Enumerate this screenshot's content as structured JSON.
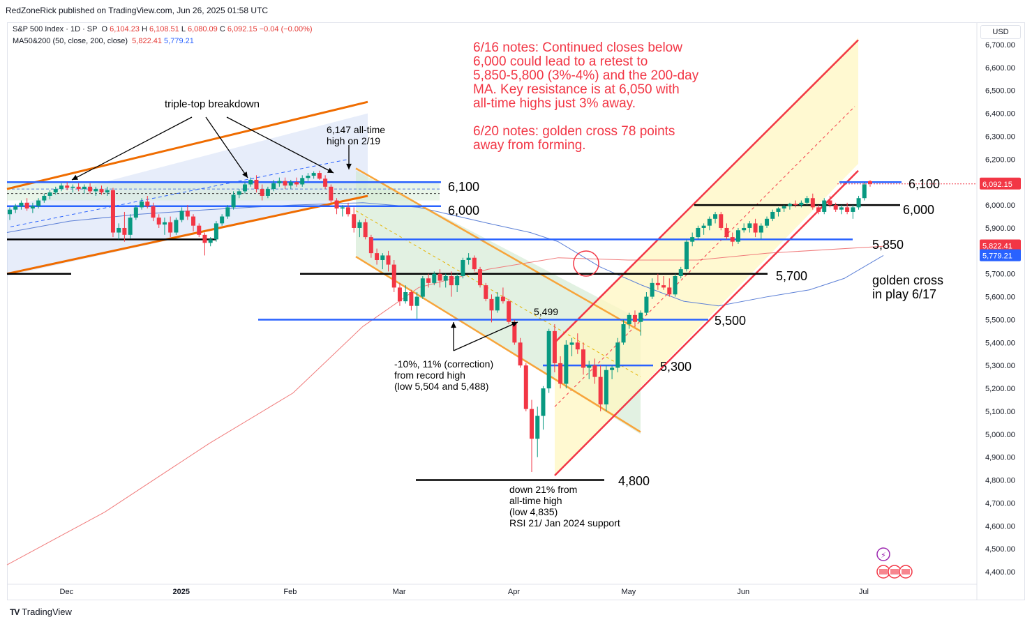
{
  "header": {
    "publisher": "RedZoneRick published on TradingView.com, Jun 26, 2025 01:58 UTC"
  },
  "legend": {
    "symbol": "S&P 500 Index · 1D · SP",
    "o_label": "O",
    "o": "6,104.23",
    "h_label": "H",
    "h": "6,108.51",
    "l_label": "L",
    "l": "6,080.09",
    "c_label": "C",
    "c": "6,092.15",
    "change": "−0.04 (−0.00%)",
    "ma_label": "MA50&200 (50, close, 200, close)",
    "ma50": "5,822.41",
    "ma200": "5,779.21"
  },
  "currency_button": "USD",
  "footer": {
    "brand": "TradingView",
    "logo": "TV"
  },
  "colors": {
    "up": "#089981",
    "down": "#f23645",
    "ma50": "#5b7fd6",
    "ma200": "#f07a7a",
    "blue_line": "#2962ff",
    "orange": "#ef6c00",
    "red_channel": "#f23645",
    "black": "#000000"
  },
  "chart_data": {
    "type": "candlestick",
    "ylim": [
      4320,
      6780
    ],
    "y_ticks": [
      "6,700.00",
      "6,600.00",
      "6,500.00",
      "6,400.00",
      "6,300.00",
      "6,200.00",
      "6,100.00",
      "6,000.00",
      "5,900.00",
      "5,800.00",
      "5,700.00",
      "5,600.00",
      "5,500.00",
      "5,400.00",
      "5,300.00",
      "5,200.00",
      "5,100.00",
      "5,000.00",
      "4,900.00",
      "4,800.00",
      "4,700.00",
      "4,600.00",
      "4,500.00",
      "4,400.00"
    ],
    "x_labels": [
      {
        "label": "Dec",
        "idx": 6
      },
      {
        "label": "2025",
        "idx": 26
      },
      {
        "label": "Feb",
        "idx": 45
      },
      {
        "label": "Mar",
        "idx": 64
      },
      {
        "label": "Apr",
        "idx": 84
      },
      {
        "label": "May",
        "idx": 104
      },
      {
        "label": "Jun",
        "idx": 124
      },
      {
        "label": "Jul",
        "idx": 145
      }
    ],
    "x_bold": [
      "2025"
    ],
    "price_badges": [
      {
        "label": "6,092.15",
        "value": 6092.15,
        "color": "#f23645"
      },
      {
        "label": "5,822.41",
        "value": 5822.41,
        "color": "#f23645"
      },
      {
        "label": "5,779.21",
        "value": 5779.21,
        "color": "#2962ff"
      }
    ],
    "candles": [
      [
        5960,
        5990,
        5935,
        5980
      ],
      [
        5980,
        6005,
        5965,
        5995
      ],
      [
        5995,
        6020,
        5980,
        6010
      ],
      [
        6010,
        6030,
        5975,
        5985
      ],
      [
        5985,
        6010,
        5965,
        5995
      ],
      [
        5995,
        6030,
        5985,
        6020
      ],
      [
        6020,
        6050,
        6010,
        6040
      ],
      [
        6040,
        6065,
        6025,
        6055
      ],
      [
        6055,
        6080,
        6045,
        6070
      ],
      [
        6070,
        6095,
        6060,
        6085
      ],
      [
        6085,
        6100,
        6065,
        6075
      ],
      [
        6075,
        6090,
        6055,
        6080
      ],
      [
        6080,
        6095,
        6060,
        6070
      ],
      [
        6070,
        6090,
        6050,
        6080
      ],
      [
        6080,
        6095,
        6050,
        6060
      ],
      [
        6060,
        6080,
        6040,
        6070
      ],
      [
        6070,
        6085,
        6045,
        6055
      ],
      [
        6055,
        6080,
        6040,
        6065
      ],
      [
        6065,
        6075,
        5860,
        5880
      ],
      [
        5880,
        5920,
        5850,
        5900
      ],
      [
        5900,
        5970,
        5840,
        5870
      ],
      [
        5870,
        5960,
        5855,
        5945
      ],
      [
        5945,
        6000,
        5935,
        5990
      ],
      [
        5990,
        6030,
        5980,
        6015
      ],
      [
        6015,
        6040,
        5985,
        5995
      ],
      [
        5995,
        6010,
        5930,
        5945
      ],
      [
        5945,
        5960,
        5900,
        5915
      ],
      [
        5915,
        5945,
        5870,
        5925
      ],
      [
        5925,
        5950,
        5860,
        5880
      ],
      [
        5880,
        5945,
        5870,
        5935
      ],
      [
        5935,
        5990,
        5925,
        5975
      ],
      [
        5975,
        6000,
        5935,
        5950
      ],
      [
        5950,
        5960,
        5885,
        5910
      ],
      [
        5910,
        5920,
        5860,
        5870
      ],
      [
        5870,
        5880,
        5780,
        5835
      ],
      [
        5835,
        5860,
        5820,
        5850
      ],
      [
        5850,
        5930,
        5840,
        5920
      ],
      [
        5920,
        5960,
        5910,
        5950
      ],
      [
        5950,
        6000,
        5940,
        5990
      ],
      [
        5990,
        6060,
        5980,
        6045
      ],
      [
        6045,
        6070,
        6030,
        6060
      ],
      [
        6060,
        6100,
        6050,
        6090
      ],
      [
        6090,
        6120,
        6080,
        6110
      ],
      [
        6110,
        6130,
        6055,
        6070
      ],
      [
        6070,
        6090,
        6020,
        6040
      ],
      [
        6040,
        6080,
        6030,
        6070
      ],
      [
        6070,
        6110,
        6060,
        6095
      ],
      [
        6095,
        6120,
        6080,
        6105
      ],
      [
        6105,
        6120,
        6070,
        6085
      ],
      [
        6085,
        6110,
        6070,
        6100
      ],
      [
        6100,
        6120,
        6080,
        6090
      ],
      [
        6090,
        6130,
        6080,
        6118
      ],
      [
        6118,
        6140,
        6105,
        6128
      ],
      [
        6128,
        6147,
        6115,
        6140
      ],
      [
        6140,
        6150,
        6110,
        6115
      ],
      [
        6115,
        6130,
        6070,
        6080
      ],
      [
        6080,
        6090,
        6010,
        6020
      ],
      [
        6020,
        6030,
        5960,
        5985
      ],
      [
        5985,
        6000,
        5950,
        5990
      ],
      [
        5990,
        6010,
        5950,
        5960
      ],
      [
        5960,
        5990,
        5880,
        5900
      ],
      [
        5900,
        5935,
        5860,
        5925
      ],
      [
        5925,
        5940,
        5850,
        5860
      ],
      [
        5860,
        5870,
        5770,
        5790
      ],
      [
        5790,
        5810,
        5740,
        5760
      ],
      [
        5760,
        5790,
        5720,
        5780
      ],
      [
        5780,
        5800,
        5710,
        5740
      ],
      [
        5740,
        5760,
        5620,
        5640
      ],
      [
        5640,
        5660,
        5560,
        5580
      ],
      [
        5580,
        5650,
        5570,
        5620
      ],
      [
        5620,
        5630,
        5540,
        5560
      ],
      [
        5560,
        5620,
        5504,
        5600
      ],
      [
        5600,
        5690,
        5590,
        5680
      ],
      [
        5680,
        5700,
        5640,
        5660
      ],
      [
        5660,
        5710,
        5650,
        5700
      ],
      [
        5700,
        5720,
        5640,
        5670
      ],
      [
        5670,
        5700,
        5640,
        5690
      ],
      [
        5690,
        5710,
        5600,
        5650
      ],
      [
        5650,
        5700,
        5620,
        5690
      ],
      [
        5690,
        5770,
        5680,
        5760
      ],
      [
        5760,
        5790,
        5740,
        5770
      ],
      [
        5770,
        5780,
        5710,
        5720
      ],
      [
        5720,
        5730,
        5640,
        5650
      ],
      [
        5650,
        5660,
        5580,
        5590
      ],
      [
        5590,
        5610,
        5488,
        5540
      ],
      [
        5540,
        5620,
        5530,
        5600
      ],
      [
        5600,
        5640,
        5570,
        5580
      ],
      [
        5580,
        5590,
        5480,
        5490
      ],
      [
        5490,
        5500,
        5390,
        5400
      ],
      [
        5400,
        5420,
        5290,
        5300
      ],
      [
        5300,
        5310,
        5100,
        5110
      ],
      [
        5110,
        5150,
        4835,
        4980
      ],
      [
        4980,
        5120,
        4900,
        5080
      ],
      [
        5080,
        5210,
        5020,
        5200
      ],
      [
        5200,
        5460,
        5180,
        5450
      ],
      [
        5450,
        5480,
        5270,
        5310
      ],
      [
        5310,
        5340,
        5200,
        5220
      ],
      [
        5220,
        5410,
        5200,
        5390
      ],
      [
        5390,
        5420,
        5340,
        5400
      ],
      [
        5400,
        5440,
        5350,
        5370
      ],
      [
        5370,
        5400,
        5260,
        5290
      ],
      [
        5290,
        5320,
        5240,
        5300
      ],
      [
        5300,
        5330,
        5220,
        5250
      ],
      [
        5250,
        5300,
        5100,
        5130
      ],
      [
        5130,
        5300,
        5100,
        5280
      ],
      [
        5280,
        5300,
        5240,
        5290
      ],
      [
        5290,
        5420,
        5270,
        5400
      ],
      [
        5400,
        5500,
        5390,
        5480
      ],
      [
        5480,
        5530,
        5460,
        5520
      ],
      [
        5520,
        5540,
        5470,
        5490
      ],
      [
        5490,
        5540,
        5430,
        5530
      ],
      [
        5530,
        5620,
        5520,
        5600
      ],
      [
        5600,
        5680,
        5590,
        5660
      ],
      [
        5660,
        5700,
        5630,
        5650
      ],
      [
        5650,
        5690,
        5630,
        5640
      ],
      [
        5640,
        5680,
        5600,
        5610
      ],
      [
        5610,
        5700,
        5600,
        5690
      ],
      [
        5690,
        5730,
        5680,
        5720
      ],
      [
        5720,
        5850,
        5710,
        5840
      ],
      [
        5840,
        5880,
        5820,
        5860
      ],
      [
        5860,
        5910,
        5850,
        5900
      ],
      [
        5900,
        5920,
        5870,
        5910
      ],
      [
        5910,
        5950,
        5890,
        5940
      ],
      [
        5940,
        5970,
        5920,
        5960
      ],
      [
        5960,
        5970,
        5890,
        5900
      ],
      [
        5900,
        5920,
        5850,
        5860
      ],
      [
        5860,
        5880,
        5820,
        5840
      ],
      [
        5840,
        5900,
        5830,
        5890
      ],
      [
        5890,
        5920,
        5880,
        5900
      ],
      [
        5900,
        5930,
        5880,
        5920
      ],
      [
        5920,
        5940,
        5860,
        5880
      ],
      [
        5880,
        5920,
        5850,
        5910
      ],
      [
        5910,
        5950,
        5900,
        5940
      ],
      [
        5940,
        5980,
        5930,
        5970
      ],
      [
        5970,
        5990,
        5950,
        5985
      ],
      [
        5985,
        6000,
        5970,
        5995
      ],
      [
        5995,
        6010,
        5980,
        6005
      ],
      [
        6005,
        6020,
        5990,
        6000
      ],
      [
        6000,
        6020,
        5990,
        6010
      ],
      [
        6010,
        6040,
        6000,
        6030
      ],
      [
        6030,
        6050,
        5980,
        5990
      ],
      [
        5990,
        6000,
        5960,
        5970
      ],
      [
        5970,
        6030,
        5960,
        6020
      ],
      [
        6020,
        6040,
        5990,
        6000
      ],
      [
        6000,
        6010,
        5970,
        5980
      ],
      [
        5980,
        6000,
        5960,
        5990
      ],
      [
        5990,
        6010,
        5960,
        5970
      ],
      [
        5970,
        6000,
        5940,
        5990
      ],
      [
        5990,
        6040,
        5980,
        6030
      ],
      [
        6030,
        6100,
        6020,
        6090
      ],
      [
        6104.23,
        6108.51,
        6080.09,
        6092.15
      ]
    ]
  },
  "annotations": {
    "notes_1": [
      "6/16 notes: Continued closes below",
      "6,000 could lead to a retest to",
      "5,850-5,800 (3%-4%) and the 200-day",
      "MA. Key resistance is at 6,050 with",
      "all-time highs just 3% away."
    ],
    "notes_2": [
      "6/20 notes: golden cross 78 points",
      "away from forming."
    ],
    "triple_top": "triple-top breakdown",
    "ath": [
      "6,147 all-time",
      "high on 2/19"
    ],
    "correction": [
      "-10%, 11% (correction)",
      "from record high",
      "(low 5,504 and 5,488)"
    ],
    "low_5499": "5,499",
    "down21": [
      "down 21% from",
      "all-time high",
      "(low 4,835)",
      "RSI 21/ Jan 2024 support"
    ],
    "golden": [
      "golden cross",
      "in play 6/17"
    ],
    "level_6100_a": "6,100",
    "level_6000_a": "6,000",
    "level_6100_b": "6,100",
    "level_6000_b": "6,000",
    "level_5850": "5,850",
    "level_5700": "5,700",
    "level_5500": "5,500",
    "level_5300": "5,300",
    "level_4800": "4,800"
  }
}
